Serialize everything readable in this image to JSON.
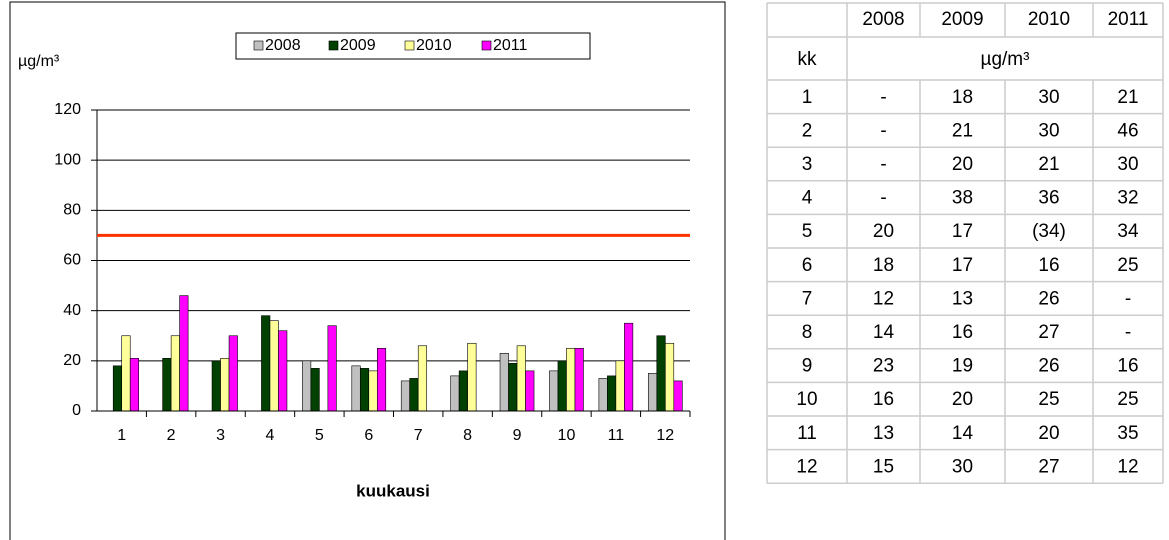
{
  "chart_data": {
    "type": "bar",
    "y_label": "µg/m³",
    "x_label": "kuukausi",
    "categories": [
      1,
      2,
      3,
      4,
      5,
      6,
      7,
      8,
      9,
      10,
      11,
      12
    ],
    "series": [
      {
        "name": "2008",
        "color": "#c0c0c0",
        "values": [
          null,
          null,
          null,
          null,
          20,
          18,
          12,
          14,
          23,
          16,
          13,
          15
        ]
      },
      {
        "name": "2009",
        "color": "#004000",
        "values": [
          18,
          21,
          20,
          38,
          17,
          17,
          13,
          16,
          19,
          20,
          14,
          30
        ]
      },
      {
        "name": "2010",
        "color": "#ffff99",
        "values": [
          30,
          30,
          21,
          36,
          null,
          16,
          26,
          27,
          26,
          25,
          20,
          27
        ]
      },
      {
        "name": "2011",
        "color": "#ff00ff",
        "values": [
          21,
          46,
          30,
          32,
          34,
          25,
          null,
          null,
          16,
          25,
          35,
          12
        ]
      }
    ],
    "ylim": [
      0,
      120
    ],
    "yticks": [
      0,
      20,
      40,
      60,
      80,
      100,
      120
    ],
    "grid": true,
    "reference_line": {
      "value": 70,
      "color": "#ff3300"
    },
    "legend": "top"
  },
  "table": {
    "columns": [
      "2008",
      "2009",
      "2010",
      "2011"
    ],
    "unit_row": {
      "label": "kk",
      "unit": "µg/m³"
    },
    "rows": [
      [
        1,
        "-",
        18,
        30,
        21
      ],
      [
        2,
        "-",
        21,
        30,
        46
      ],
      [
        3,
        "-",
        20,
        21,
        30
      ],
      [
        4,
        "-",
        38,
        36,
        32
      ],
      [
        5,
        20,
        17,
        "(34)",
        34
      ],
      [
        6,
        18,
        17,
        16,
        25
      ],
      [
        7,
        12,
        13,
        26,
        "-"
      ],
      [
        8,
        14,
        16,
        27,
        "-"
      ],
      [
        9,
        23,
        19,
        26,
        16
      ],
      [
        10,
        16,
        20,
        25,
        25
      ],
      [
        11,
        13,
        14,
        20,
        35
      ],
      [
        12,
        15,
        30,
        27,
        12
      ]
    ]
  }
}
